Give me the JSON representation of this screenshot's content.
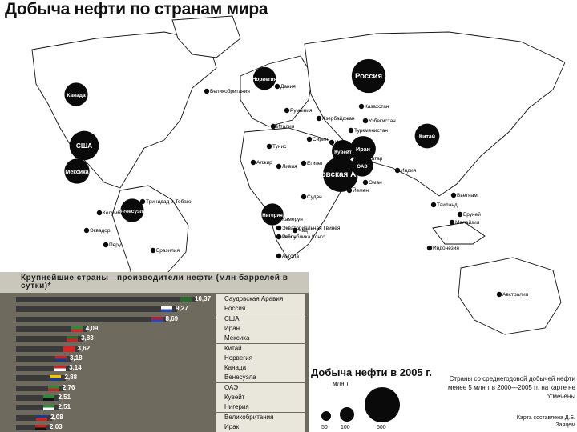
{
  "title": "Добыча нефти по странам мира",
  "map": {
    "producers": [
      {
        "name": "Россия",
        "value": 470
      },
      {
        "name": "США",
        "value": 310
      },
      {
        "name": "Саудовская Аравия",
        "value": 520
      },
      {
        "name": "Китай",
        "value": 180
      },
      {
        "name": "Иран",
        "value": 200
      },
      {
        "name": "Мексика",
        "value": 190
      },
      {
        "name": "Канада",
        "value": 150
      },
      {
        "name": "Норвегия",
        "value": 140
      },
      {
        "name": "Венесуэла",
        "value": 150
      },
      {
        "name": "Нигерия",
        "value": 120
      },
      {
        "name": "Кувейт",
        "value": 130
      },
      {
        "name": "ОАЭ",
        "value": 120
      }
    ],
    "labels": [
      "Великобритания",
      "Дания",
      "Казахстан",
      "Азербайджан",
      "Узбекистан",
      "Туркменистан",
      "Румыния",
      "Италия",
      "Сирия",
      "Ирак",
      "Катар",
      "Оман",
      "Йемен",
      "Египет",
      "Ливия",
      "Алжир",
      "Тунис",
      "Судан",
      "Индия",
      "Вьетнам",
      "Таиланд",
      "Бруней",
      "Малайзия",
      "Индонезия",
      "Австралия",
      "Тринидад и Тобаго",
      "Колумбия",
      "Эквадор",
      "Перу",
      "Бразилия",
      "Аргентина",
      "Камерун",
      "Экваториальная Гвинея",
      "Габон",
      "Республика Конго",
      "Ангола",
      "Чад"
    ]
  },
  "inset": {
    "title": "Крупнейшие страны—производители нефти (млн баррелей в сутки)*",
    "chart_data": {
      "type": "bar",
      "categories": [
        "Саудовская Аравия",
        "Россия",
        "США",
        "Иран",
        "Мексика",
        "Китай",
        "Норвегия",
        "Канада",
        "Венесуэла",
        "ОАЭ",
        "Кувейт",
        "Нигерия",
        "Великобритания",
        "Ирак"
      ],
      "values": [
        10.37,
        9.27,
        8.69,
        4.09,
        3.83,
        3.62,
        3.18,
        3.14,
        2.88,
        2.76,
        2.51,
        2.51,
        2.08,
        2.03
      ],
      "value_labels": [
        "10,37",
        "9,27",
        "8,69",
        "4,09",
        "3,83",
        "3,62",
        "3,18",
        "3,14",
        "2,88",
        "2,76",
        "2,51",
        "2,51",
        "2,08",
        "2,03"
      ]
    }
  },
  "legend": {
    "title": "Добыча нефти в 2005 г.",
    "unit": "млн т",
    "sizes": [
      "50",
      "100",
      "500"
    ]
  },
  "note": "Страны со среднегодовой добычей нефти менее 5 млн т в 2000—2005 гг. на карте не отмечены",
  "credit": "Карта составлена Д.Б. Заяцем"
}
